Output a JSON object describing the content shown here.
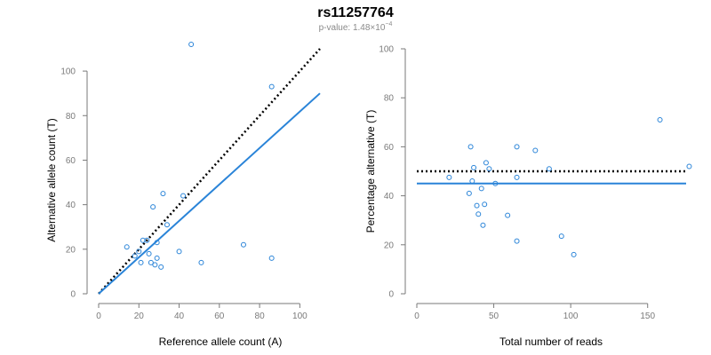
{
  "title": "rs11257764",
  "subtitle_main": "p-value: 1.48×10",
  "subtitle_exp": "−4",
  "colors": {
    "blue": "#2a84d8",
    "black": "#000000",
    "axis": "#7a7a7a"
  },
  "chart_data": [
    {
      "type": "scatter",
      "xlabel": "Reference allele count (A)",
      "ylabel": "Alternative allele count (T)",
      "xlim": [
        0,
        110
      ],
      "ylim": [
        0,
        110
      ],
      "xticks": [
        0,
        20,
        40,
        60,
        80,
        100
      ],
      "yticks": [
        0,
        20,
        40,
        60,
        80,
        100
      ],
      "grid": false,
      "points": [
        {
          "x": 46,
          "y": 112
        },
        {
          "x": 86,
          "y": 93
        },
        {
          "x": 32,
          "y": 45
        },
        {
          "x": 42,
          "y": 44
        },
        {
          "x": 27,
          "y": 39
        },
        {
          "x": 34,
          "y": 31
        },
        {
          "x": 22,
          "y": 24
        },
        {
          "x": 24,
          "y": 24
        },
        {
          "x": 29,
          "y": 23
        },
        {
          "x": 72,
          "y": 22
        },
        {
          "x": 14,
          "y": 21
        },
        {
          "x": 20,
          "y": 19
        },
        {
          "x": 40,
          "y": 19
        },
        {
          "x": 25,
          "y": 18
        },
        {
          "x": 18,
          "y": 17
        },
        {
          "x": 29,
          "y": 16
        },
        {
          "x": 86,
          "y": 16
        },
        {
          "x": 26,
          "y": 14
        },
        {
          "x": 21,
          "y": 14
        },
        {
          "x": 51,
          "y": 14
        },
        {
          "x": 28,
          "y": 13
        },
        {
          "x": 31,
          "y": 12
        }
      ],
      "lines": [
        {
          "style": "dotted",
          "color": "#000000",
          "x": [
            0,
            110
          ],
          "y": [
            0,
            110
          ]
        },
        {
          "style": "solid",
          "color": "#2a84d8",
          "x": [
            0,
            110
          ],
          "y": [
            0,
            90
          ]
        }
      ]
    },
    {
      "type": "scatter",
      "xlabel": "Total number of reads",
      "ylabel": "Percentage alternative (T)",
      "xlim": [
        0,
        175
      ],
      "ylim": [
        0,
        100
      ],
      "xticks": [
        0,
        50,
        100,
        150
      ],
      "yticks": [
        0,
        20,
        40,
        60,
        80,
        100
      ],
      "grid": false,
      "points": [
        {
          "x": 158,
          "y": 71
        },
        {
          "x": 35,
          "y": 60
        },
        {
          "x": 65,
          "y": 60
        },
        {
          "x": 77,
          "y": 58.5
        },
        {
          "x": 45,
          "y": 53.5
        },
        {
          "x": 177,
          "y": 52
        },
        {
          "x": 37,
          "y": 51.5
        },
        {
          "x": 47,
          "y": 51
        },
        {
          "x": 86,
          "y": 51
        },
        {
          "x": 21,
          "y": 47.5
        },
        {
          "x": 65,
          "y": 47.5
        },
        {
          "x": 36,
          "y": 46
        },
        {
          "x": 51,
          "y": 45
        },
        {
          "x": 42,
          "y": 43
        },
        {
          "x": 34,
          "y": 41
        },
        {
          "x": 39,
          "y": 36
        },
        {
          "x": 44,
          "y": 36.5
        },
        {
          "x": 40,
          "y": 32.5
        },
        {
          "x": 59,
          "y": 32
        },
        {
          "x": 43,
          "y": 28
        },
        {
          "x": 94,
          "y": 23.5
        },
        {
          "x": 65,
          "y": 21.5
        },
        {
          "x": 102,
          "y": 16
        }
      ],
      "lines": [
        {
          "style": "dotted",
          "color": "#000000",
          "x": [
            0,
            175
          ],
          "y": [
            50,
            50
          ]
        },
        {
          "style": "solid",
          "color": "#2a84d8",
          "x": [
            0,
            175
          ],
          "y": [
            45,
            45
          ]
        }
      ]
    }
  ]
}
